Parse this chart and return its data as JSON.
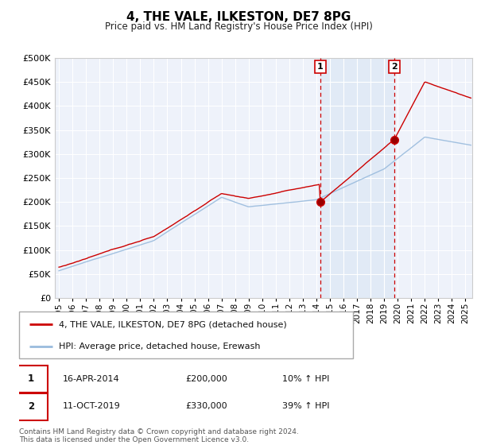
{
  "title": "4, THE VALE, ILKESTON, DE7 8PG",
  "subtitle": "Price paid vs. HM Land Registry's House Price Index (HPI)",
  "background_color": "#ffffff",
  "plot_bg_color": "#eef2fa",
  "shade_color": "#dce8f5",
  "grid_color": "#ffffff",
  "line1_color": "#cc0000",
  "line2_color": "#99bbdd",
  "vline_color": "#cc0000",
  "legend_entries": [
    "4, THE VALE, ILKESTON, DE7 8PG (detached house)",
    "HPI: Average price, detached house, Erewash"
  ],
  "annotation1": {
    "label": "1",
    "date": "16-APR-2014",
    "price": "£200,000",
    "change": "10% ↑ HPI"
  },
  "annotation2": {
    "label": "2",
    "date": "11-OCT-2019",
    "price": "£330,000",
    "change": "39% ↑ HPI"
  },
  "footnote": "Contains HM Land Registry data © Crown copyright and database right 2024.\nThis data is licensed under the Open Government Licence v3.0.",
  "ylim": [
    0,
    500000
  ],
  "yticks": [
    0,
    50000,
    100000,
    150000,
    200000,
    250000,
    300000,
    350000,
    400000,
    450000,
    500000
  ],
  "sale1_year": 2014.29,
  "sale1_price": 200000,
  "sale2_year": 2019.75,
  "sale2_price": 330000
}
